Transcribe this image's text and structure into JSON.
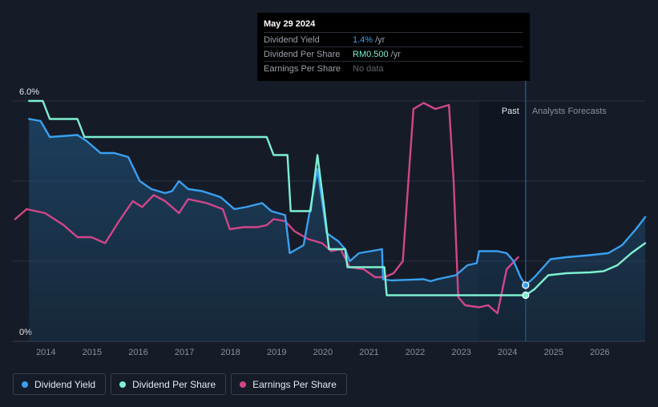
{
  "tooltip": {
    "date": "May 29 2024",
    "rows": [
      {
        "label": "Dividend Yield",
        "value": "1.4%",
        "unit": "/yr"
      },
      {
        "label": "Dividend Per Share",
        "value": "RM0.500",
        "unit": "/yr"
      },
      {
        "label": "Earnings Per Share",
        "value": "No data"
      }
    ]
  },
  "chart_data": {
    "type": "line",
    "y_axis_ticks": [
      "6.0%",
      "0%"
    ],
    "ylim": [
      0,
      6.0
    ],
    "xlim": [
      2013.3,
      2027.0
    ],
    "x_ticks": [
      "2014",
      "2015",
      "2016",
      "2017",
      "2018",
      "2019",
      "2020",
      "2021",
      "2022",
      "2023",
      "2024",
      "2025",
      "2026"
    ],
    "regions": {
      "past_label": "Past",
      "forecast_label": "Analysts Forecasts",
      "past_shade_start": 2023.4,
      "now": 2024.41
    },
    "colors": {
      "yield": "#3aa0f0",
      "dps": "#7ef0d0",
      "eps": "#d1468a",
      "grid": "#2a3140",
      "axis": "#8a9099",
      "past_shade": "#0f1621"
    },
    "series": [
      {
        "name": "Dividend Yield",
        "key": "yield",
        "area": true,
        "points": [
          [
            2013.65,
            5.55
          ],
          [
            2013.9,
            5.5
          ],
          [
            2014.1,
            5.1
          ],
          [
            2014.7,
            5.15
          ],
          [
            2014.9,
            5.0
          ],
          [
            2015.2,
            4.7
          ],
          [
            2015.5,
            4.7
          ],
          [
            2015.8,
            4.6
          ],
          [
            2016.05,
            4.0
          ],
          [
            2016.3,
            3.8
          ],
          [
            2016.6,
            3.7
          ],
          [
            2016.75,
            3.75
          ],
          [
            2016.9,
            4.0
          ],
          [
            2017.1,
            3.8
          ],
          [
            2017.4,
            3.75
          ],
          [
            2017.8,
            3.6
          ],
          [
            2018.1,
            3.3
          ],
          [
            2018.35,
            3.35
          ],
          [
            2018.7,
            3.45
          ],
          [
            2018.9,
            3.25
          ],
          [
            2019.2,
            3.15
          ],
          [
            2019.3,
            2.2
          ],
          [
            2019.6,
            2.4
          ],
          [
            2019.9,
            4.3
          ],
          [
            2020.1,
            2.7
          ],
          [
            2020.35,
            2.5
          ],
          [
            2020.5,
            2.3
          ],
          [
            2020.6,
            2.0
          ],
          [
            2020.8,
            2.2
          ],
          [
            2021.2,
            2.28
          ],
          [
            2021.3,
            2.3
          ],
          [
            2021.32,
            1.55
          ],
          [
            2021.5,
            1.52
          ],
          [
            2022.2,
            1.55
          ],
          [
            2022.35,
            1.5
          ],
          [
            2022.5,
            1.55
          ],
          [
            2022.7,
            1.6
          ],
          [
            2022.9,
            1.65
          ],
          [
            2023.15,
            1.9
          ],
          [
            2023.35,
            1.95
          ],
          [
            2023.4,
            2.25
          ],
          [
            2023.8,
            2.25
          ],
          [
            2024.0,
            2.2
          ],
          [
            2024.15,
            2.0
          ],
          [
            2024.3,
            1.6
          ],
          [
            2024.41,
            1.4
          ],
          [
            2024.6,
            1.6
          ],
          [
            2024.95,
            2.05
          ],
          [
            2025.3,
            2.1
          ],
          [
            2025.8,
            2.15
          ],
          [
            2026.2,
            2.2
          ],
          [
            2026.5,
            2.4
          ],
          [
            2026.8,
            2.8
          ],
          [
            2027.0,
            3.1
          ]
        ]
      },
      {
        "name": "Dividend Per Share",
        "key": "dps",
        "area": false,
        "points": [
          [
            2013.65,
            6.0
          ],
          [
            2013.95,
            6.0
          ],
          [
            2014.1,
            5.55
          ],
          [
            2014.7,
            5.55
          ],
          [
            2014.85,
            5.1
          ],
          [
            2018.8,
            5.1
          ],
          [
            2018.95,
            4.65
          ],
          [
            2019.25,
            4.65
          ],
          [
            2019.32,
            3.25
          ],
          [
            2019.75,
            3.25
          ],
          [
            2019.9,
            4.65
          ],
          [
            2020.05,
            3.3
          ],
          [
            2020.15,
            2.3
          ],
          [
            2020.5,
            2.3
          ],
          [
            2020.55,
            1.85
          ],
          [
            2021.35,
            1.85
          ],
          [
            2021.4,
            1.15
          ],
          [
            2024.41,
            1.15
          ],
          [
            2024.6,
            1.3
          ],
          [
            2024.9,
            1.65
          ],
          [
            2025.3,
            1.7
          ],
          [
            2025.8,
            1.72
          ],
          [
            2026.1,
            1.75
          ],
          [
            2026.4,
            1.9
          ],
          [
            2026.7,
            2.2
          ],
          [
            2027.0,
            2.45
          ]
        ]
      },
      {
        "name": "Earnings Per Share",
        "key": "eps",
        "area": false,
        "points": [
          [
            2013.35,
            3.05
          ],
          [
            2013.6,
            3.3
          ],
          [
            2014.0,
            3.2
          ],
          [
            2014.4,
            2.9
          ],
          [
            2014.7,
            2.6
          ],
          [
            2015.0,
            2.6
          ],
          [
            2015.3,
            2.45
          ],
          [
            2015.6,
            3.0
          ],
          [
            2015.9,
            3.5
          ],
          [
            2016.1,
            3.35
          ],
          [
            2016.35,
            3.65
          ],
          [
            2016.6,
            3.5
          ],
          [
            2016.9,
            3.2
          ],
          [
            2017.1,
            3.55
          ],
          [
            2017.5,
            3.45
          ],
          [
            2017.85,
            3.3
          ],
          [
            2018.0,
            2.8
          ],
          [
            2018.3,
            2.85
          ],
          [
            2018.6,
            2.85
          ],
          [
            2018.8,
            2.9
          ],
          [
            2018.95,
            3.05
          ],
          [
            2019.2,
            3.0
          ],
          [
            2019.4,
            2.75
          ],
          [
            2019.7,
            2.55
          ],
          [
            2020.0,
            2.45
          ],
          [
            2020.2,
            2.25
          ],
          [
            2020.4,
            2.3
          ],
          [
            2020.6,
            1.85
          ],
          [
            2020.9,
            1.8
          ],
          [
            2021.15,
            1.6
          ],
          [
            2021.35,
            1.6
          ],
          [
            2021.55,
            1.7
          ],
          [
            2021.75,
            2.0
          ],
          [
            2021.9,
            4.5
          ],
          [
            2021.98,
            5.8
          ],
          [
            2022.2,
            5.95
          ],
          [
            2022.45,
            5.8
          ],
          [
            2022.75,
            5.9
          ],
          [
            2022.85,
            4.0
          ],
          [
            2022.95,
            1.1
          ],
          [
            2023.1,
            0.9
          ],
          [
            2023.4,
            0.85
          ],
          [
            2023.6,
            0.9
          ],
          [
            2023.8,
            0.7
          ],
          [
            2024.0,
            1.8
          ],
          [
            2024.25,
            2.1
          ]
        ]
      }
    ],
    "markers": [
      {
        "key": "yield",
        "x": 2024.41,
        "y": 1.4
      },
      {
        "key": "dps",
        "x": 2024.41,
        "y": 1.15
      }
    ]
  },
  "legend": [
    {
      "label": "Dividend Yield",
      "color": "#3aa0f0"
    },
    {
      "label": "Dividend Per Share",
      "color": "#7ef0d0"
    },
    {
      "label": "Earnings Per Share",
      "color": "#d1468a"
    }
  ]
}
